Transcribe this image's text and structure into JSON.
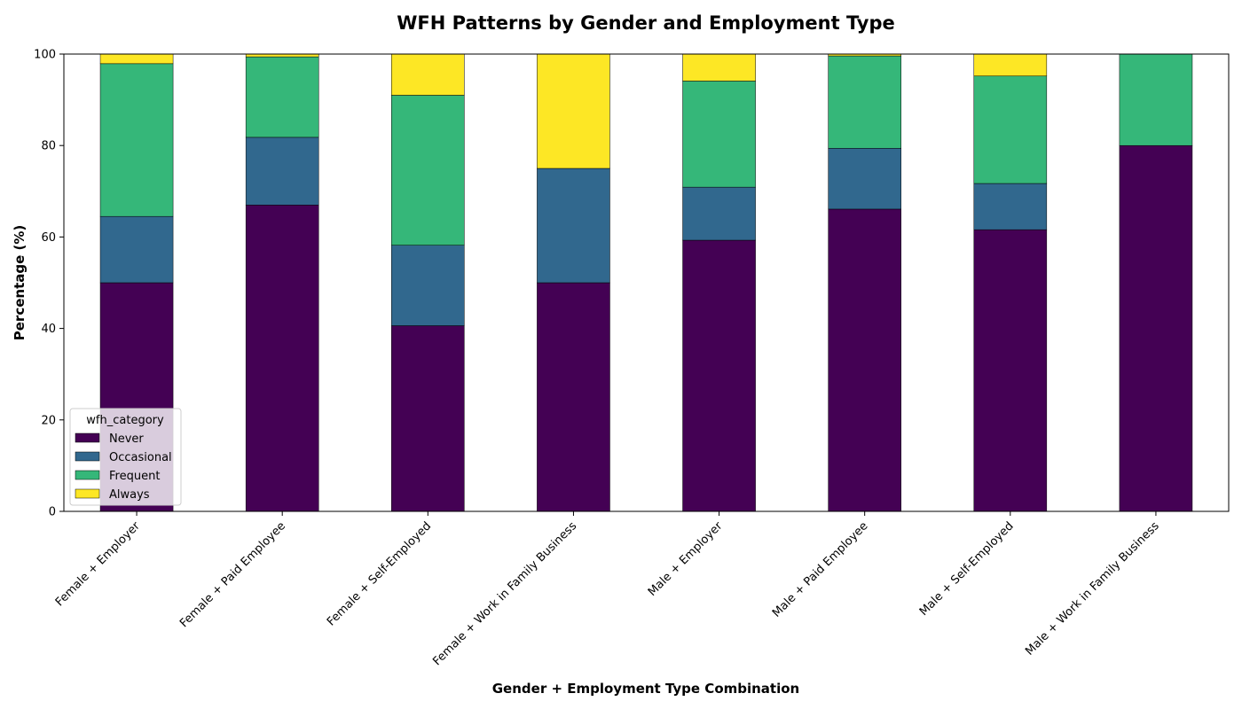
{
  "chart_data": {
    "type": "bar",
    "stacked": true,
    "title": "WFH Patterns by Gender and Employment Type",
    "xlabel": "Gender + Employment Type Combination",
    "ylabel": "Percentage (%)",
    "ylim": [
      0,
      100
    ],
    "yticks": [
      0,
      20,
      40,
      60,
      80,
      100
    ],
    "grid": false,
    "legend": {
      "title": "wfh_category",
      "placement": "lower-left"
    },
    "categories": [
      "Female + Employer",
      "Female + Paid Employee",
      "Female + Self-Employed",
      "Female + Work in Family Business",
      "Male + Employer",
      "Male + Paid Employee",
      "Male + Self-Employed",
      "Male + Work in Family Business"
    ],
    "series": [
      {
        "name": "Never",
        "color": "#440154",
        "values": [
          50.0,
          67.0,
          40.6,
          50.0,
          59.3,
          66.1,
          61.6,
          80.0
        ]
      },
      {
        "name": "Occasional",
        "color": "#31688e",
        "values": [
          14.5,
          14.8,
          17.6,
          25.0,
          11.6,
          13.3,
          10.1,
          0.0
        ]
      },
      {
        "name": "Frequent",
        "color": "#35b779",
        "values": [
          33.4,
          17.6,
          32.8,
          0.0,
          23.2,
          20.2,
          23.5,
          20.0
        ]
      },
      {
        "name": "Always",
        "color": "#fde725",
        "values": [
          2.1,
          0.6,
          9.0,
          25.0,
          5.9,
          0.4,
          4.8,
          0.0
        ]
      }
    ]
  }
}
